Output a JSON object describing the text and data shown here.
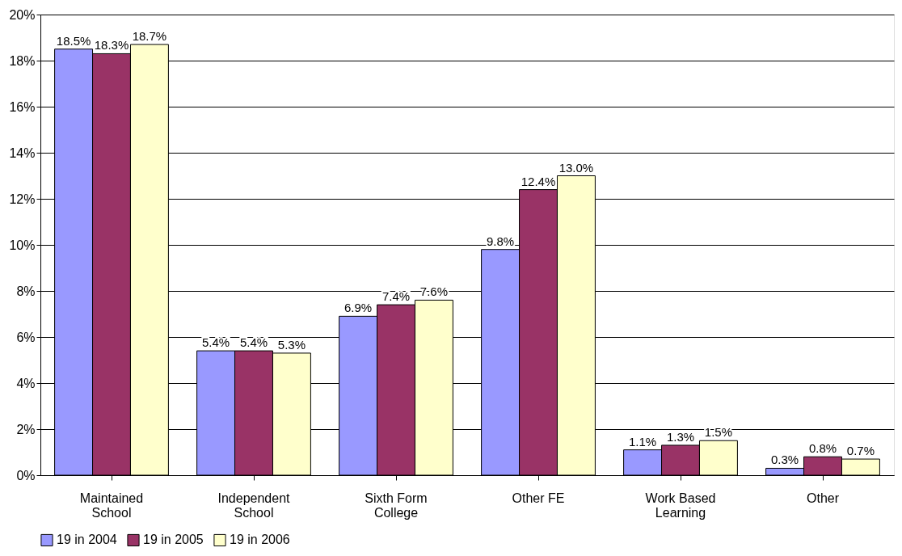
{
  "chart_data": {
    "type": "bar",
    "categories": [
      "Maintained School",
      "Independent School",
      "Sixth Form College",
      "Other FE",
      "Work Based Learning",
      "Other"
    ],
    "series": [
      {
        "name": "19 in 2004",
        "color": "#9999ff",
        "values": [
          18.5,
          5.4,
          6.9,
          9.8,
          1.1,
          0.3
        ],
        "value_labels": [
          "18.5%",
          "5.4%",
          "6.9%",
          "9.8%",
          "1.1%",
          "0.3%"
        ]
      },
      {
        "name": "19 in 2005",
        "color": "#993366",
        "values": [
          18.3,
          5.4,
          7.4,
          12.4,
          1.3,
          0.8
        ],
        "value_labels": [
          "18.3%",
          "5.4%",
          "7.4%",
          "12.4%",
          "1.3%",
          "0.8%"
        ]
      },
      {
        "name": "19 in 2006",
        "color": "#ffffcc",
        "values": [
          18.7,
          5.3,
          7.6,
          13.0,
          1.5,
          0.7
        ],
        "value_labels": [
          "18.7%",
          "5.3%",
          "7.6%",
          "13.0%",
          "1.5%",
          "0.7%"
        ]
      }
    ],
    "ylim": [
      0,
      20
    ],
    "yticks": [
      {
        "value": 0,
        "label": "0%"
      },
      {
        "value": 2,
        "label": "2%"
      },
      {
        "value": 4,
        "label": "4%"
      },
      {
        "value": 6,
        "label": "6%"
      },
      {
        "value": 8,
        "label": "8%"
      },
      {
        "value": 10,
        "label": "10%"
      },
      {
        "value": 12,
        "label": "12%"
      },
      {
        "value": 14,
        "label": "14%"
      },
      {
        "value": 16,
        "label": "16%"
      },
      {
        "value": 18,
        "label": "18%"
      },
      {
        "value": 20,
        "label": "20%"
      }
    ],
    "grid": "y",
    "legend": "bottom"
  }
}
